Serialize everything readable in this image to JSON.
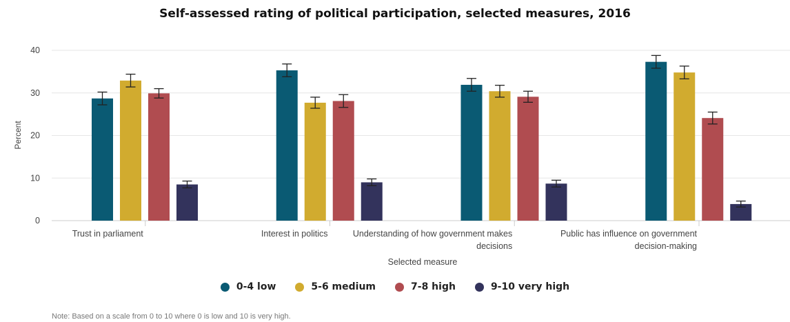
{
  "chart_data": {
    "type": "bar",
    "title": "Self-assessed rating of political participation, selected measures, 2016",
    "xlabel": "Selected measure",
    "ylabel": "Percent",
    "ylim": [
      0,
      40
    ],
    "yticks": [
      0,
      10,
      20,
      30,
      40
    ],
    "grid": true,
    "legend_position": "bottom",
    "categories": [
      [
        "Trust in parliament"
      ],
      [
        "Interest in politics"
      ],
      [
        "Understanding of how government makes",
        "decisions"
      ],
      [
        "Public has influence on government",
        "decision-making"
      ]
    ],
    "series": [
      {
        "name": "0-4 low",
        "color": "#0a5a73",
        "values": [
          28.7,
          35.3,
          31.9,
          37.3
        ],
        "error_low": [
          27.2,
          33.8,
          30.4,
          35.8
        ],
        "error_high": [
          30.2,
          36.8,
          33.4,
          38.8
        ]
      },
      {
        "name": "5-6 medium",
        "color": "#d1ab2f",
        "values": [
          32.9,
          27.7,
          30.4,
          34.8
        ],
        "error_low": [
          31.4,
          26.4,
          29.0,
          33.3
        ],
        "error_high": [
          34.4,
          29.0,
          31.8,
          36.3
        ]
      },
      {
        "name": "7-8 high",
        "color": "#b04c50",
        "values": [
          29.9,
          28.1,
          29.1,
          24.1
        ],
        "error_low": [
          28.8,
          26.6,
          27.8,
          22.7
        ],
        "error_high": [
          31.0,
          29.6,
          30.4,
          25.5
        ]
      },
      {
        "name": "9-10 very high",
        "color": "#33335c",
        "values": [
          8.5,
          9.0,
          8.7,
          3.9
        ],
        "error_low": [
          7.7,
          8.2,
          7.9,
          3.2
        ],
        "error_high": [
          9.3,
          9.8,
          9.5,
          4.6
        ]
      }
    ],
    "note": "Note: Based on a scale from 0 to 10 where 0 is low and 10 is very high."
  }
}
